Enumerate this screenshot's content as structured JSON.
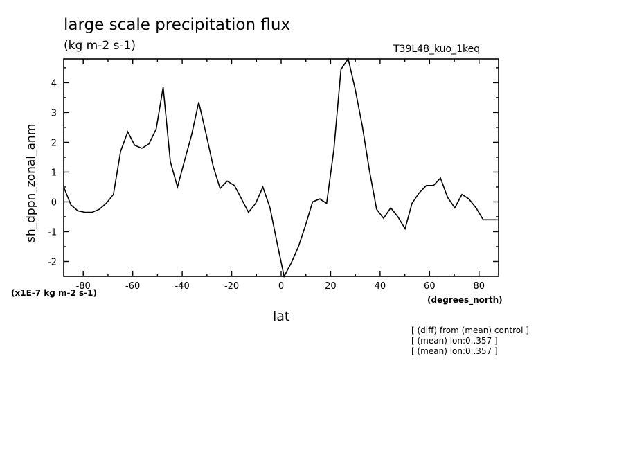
{
  "chart_data": {
    "type": "line",
    "title": "large scale precipitation flux",
    "units": "(kg m-2 s-1)",
    "run_label": "T39L48_kuo_1keq",
    "xlabel": "lat",
    "xunits": "(degrees_north)",
    "ylabel": "sh_dppn_zonal_anm",
    "scale_note": "(x1E-7 kg m-2 s-1)",
    "xlim": [
      -87.9,
      87.9
    ],
    "ylim": [
      -2.5,
      4.8
    ],
    "x_ticks": [
      -80,
      -60,
      -40,
      -20,
      0,
      20,
      40,
      60,
      80
    ],
    "x_tick_labels": [
      "-80",
      "-60",
      "-40",
      "-20",
      "0",
      "20",
      "40",
      "60",
      "80"
    ],
    "y_ticks": [
      -2,
      -1,
      0,
      1,
      2,
      3,
      4
    ],
    "y_tick_labels": [
      "-2",
      "-1",
      "0",
      "1",
      "2",
      "3",
      "4"
    ],
    "grid": false,
    "series": [
      {
        "x": [
          -87.9,
          -85.0,
          -82.2,
          -79.3,
          -76.4,
          -73.5,
          -70.7,
          -67.8,
          -64.9,
          -62.0,
          -59.2,
          -56.3,
          -53.4,
          -50.5,
          -47.7,
          -44.8,
          -41.9,
          -39.0,
          -36.2,
          -33.3,
          -30.4,
          -27.5,
          -24.7,
          -21.8,
          -18.9,
          -16.0,
          -13.2,
          -10.3,
          -7.4,
          -4.5,
          -1.7,
          1.2,
          4.1,
          7.0,
          9.8,
          12.7,
          15.6,
          18.4,
          21.3,
          24.2,
          27.1,
          29.9,
          32.8,
          35.7,
          38.6,
          41.4,
          44.3,
          47.2,
          50.1,
          52.9,
          55.8,
          58.7,
          61.6,
          64.4,
          67.3,
          70.2,
          73.1,
          75.9,
          78.8,
          81.7,
          84.6,
          87.5
        ],
        "y": [
          0.5,
          -0.1,
          -0.3,
          -0.35,
          -0.35,
          -0.25,
          -0.05,
          0.25,
          1.7,
          2.35,
          1.9,
          1.8,
          1.95,
          2.45,
          3.85,
          1.35,
          0.5,
          1.4,
          2.25,
          3.35,
          2.3,
          1.2,
          0.45,
          0.7,
          0.55,
          0.1,
          -0.35,
          -0.05,
          0.5,
          -0.2,
          -1.35,
          -2.5,
          -2.05,
          -1.5,
          -0.8,
          0.0,
          0.1,
          -0.05,
          1.75,
          4.45,
          4.8,
          3.8,
          2.55,
          1.05,
          -0.25,
          -0.55,
          -0.2,
          -0.5,
          -0.9,
          -0.05,
          0.3,
          0.55,
          0.55,
          0.8,
          0.15,
          -0.2,
          0.25,
          0.1,
          -0.2,
          -0.6,
          -0.6,
          -0.6
        ]
      }
    ]
  },
  "notes": [
    "[ (diff) from (mean) control ]",
    "[ (mean) lon:0..357 ]",
    "[ (mean) lon:0..357 ]"
  ]
}
